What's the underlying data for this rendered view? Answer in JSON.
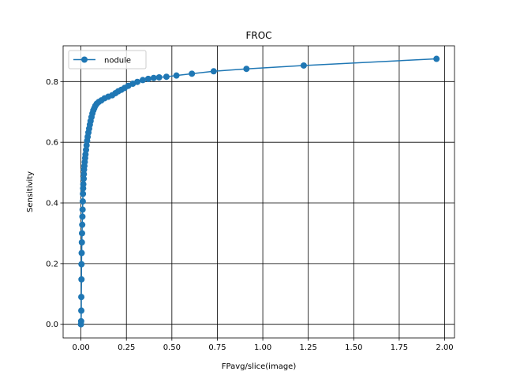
{
  "chart_data": {
    "type": "line",
    "title": "FROC",
    "xlabel": "FPavg/slice(image)",
    "ylabel": "Sensitivity",
    "xlim": [
      -0.098,
      2.054
    ],
    "ylim": [
      -0.045,
      0.918
    ],
    "xticks": [
      0.0,
      0.25,
      0.5,
      0.75,
      1.0,
      1.25,
      1.5,
      1.75,
      2.0
    ],
    "xtick_labels": [
      "0.00",
      "0.25",
      "0.50",
      "0.75",
      "1.00",
      "1.25",
      "1.50",
      "1.75",
      "2.00"
    ],
    "yticks": [
      0.0,
      0.2,
      0.4,
      0.6,
      0.8
    ],
    "ytick_labels": [
      "0.0",
      "0.2",
      "0.4",
      "0.6",
      "0.8"
    ],
    "grid": true,
    "legend_position": "top-left",
    "series": [
      {
        "name": "nodule",
        "color": "#1f77b4",
        "marker": "circle",
        "points": [
          [
            0.0,
            0.0
          ],
          [
            0.001,
            0.01
          ],
          [
            0.002,
            0.045
          ],
          [
            0.002,
            0.09
          ],
          [
            0.003,
            0.148
          ],
          [
            0.003,
            0.198
          ],
          [
            0.004,
            0.235
          ],
          [
            0.005,
            0.27
          ],
          [
            0.006,
            0.3
          ],
          [
            0.007,
            0.328
          ],
          [
            0.008,
            0.355
          ],
          [
            0.009,
            0.378
          ],
          [
            0.01,
            0.405
          ],
          [
            0.011,
            0.43
          ],
          [
            0.012,
            0.448
          ],
          [
            0.013,
            0.462
          ],
          [
            0.015,
            0.48
          ],
          [
            0.016,
            0.495
          ],
          [
            0.017,
            0.51
          ],
          [
            0.019,
            0.522
          ],
          [
            0.021,
            0.535
          ],
          [
            0.023,
            0.548
          ],
          [
            0.025,
            0.56
          ],
          [
            0.028,
            0.575
          ],
          [
            0.031,
            0.59
          ],
          [
            0.034,
            0.605
          ],
          [
            0.037,
            0.618
          ],
          [
            0.041,
            0.632
          ],
          [
            0.045,
            0.645
          ],
          [
            0.049,
            0.658
          ],
          [
            0.053,
            0.67
          ],
          [
            0.058,
            0.683
          ],
          [
            0.063,
            0.695
          ],
          [
            0.068,
            0.705
          ],
          [
            0.073,
            0.712
          ],
          [
            0.079,
            0.72
          ],
          [
            0.087,
            0.727
          ],
          [
            0.098,
            0.733
          ],
          [
            0.112,
            0.738
          ],
          [
            0.13,
            0.745
          ],
          [
            0.15,
            0.75
          ],
          [
            0.172,
            0.755
          ],
          [
            0.19,
            0.762
          ],
          [
            0.205,
            0.768
          ],
          [
            0.222,
            0.773
          ],
          [
            0.24,
            0.779
          ],
          [
            0.26,
            0.786
          ],
          [
            0.285,
            0.793
          ],
          [
            0.31,
            0.799
          ],
          [
            0.34,
            0.805
          ],
          [
            0.37,
            0.809
          ],
          [
            0.4,
            0.812
          ],
          [
            0.43,
            0.814
          ],
          [
            0.47,
            0.816
          ],
          [
            0.525,
            0.82
          ],
          [
            0.61,
            0.826
          ],
          [
            0.73,
            0.834
          ],
          [
            0.91,
            0.842
          ],
          [
            1.225,
            0.853
          ],
          [
            1.955,
            0.875
          ]
        ]
      }
    ]
  }
}
